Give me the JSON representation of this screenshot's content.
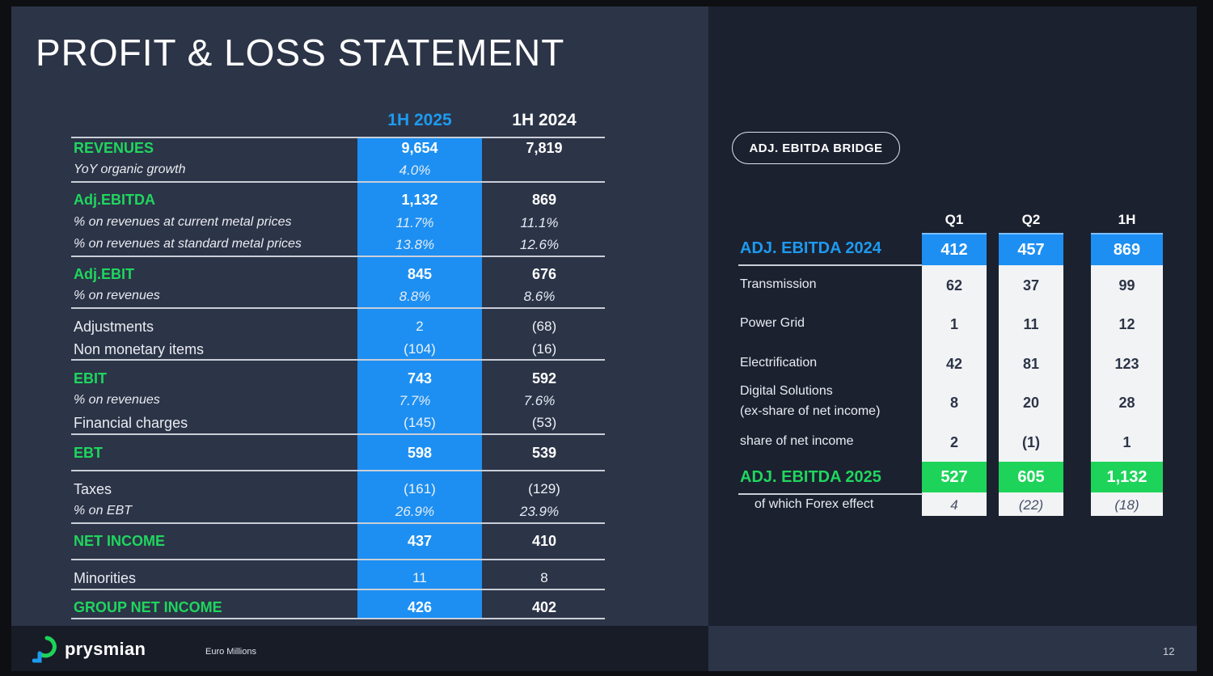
{
  "title": "PROFIT & LOSS STATEMENT",
  "pl_table": {
    "col_current": "1H 2025",
    "col_prior": "1H 2024",
    "rows": {
      "revenues": {
        "label": "REVENUES",
        "cur": "9,654",
        "prev": "7,819"
      },
      "yoy_growth": {
        "label": "YoY organic growth",
        "cur": "4.0%",
        "prev": ""
      },
      "adj_ebitda": {
        "label": "Adj.EBITDA",
        "cur": "1,132",
        "prev": "869"
      },
      "ebitda_current_metal": {
        "label": "% on revenues at current metal prices",
        "cur": "11.7%",
        "prev": "11.1%"
      },
      "ebitda_standard_metal": {
        "label": "% on revenues at standard metal prices",
        "cur": "13.8%",
        "prev": "12.6%"
      },
      "adj_ebit": {
        "label": "Adj.EBIT",
        "cur": "845",
        "prev": "676"
      },
      "adj_ebit_pct": {
        "label": "% on revenues",
        "cur": "8.8%",
        "prev": "8.6%"
      },
      "adjustments": {
        "label": "Adjustments",
        "cur": "2",
        "prev": "(68)"
      },
      "non_monetary": {
        "label": "Non monetary items",
        "cur": "(104)",
        "prev": "(16)"
      },
      "ebit": {
        "label": "EBIT",
        "cur": "743",
        "prev": "592"
      },
      "ebit_pct": {
        "label": "% on revenues",
        "cur": "7.7%",
        "prev": "7.6%"
      },
      "financial_charges": {
        "label": "Financial charges",
        "cur": "(145)",
        "prev": "(53)"
      },
      "ebt": {
        "label": "EBT",
        "cur": "598",
        "prev": "539"
      },
      "taxes": {
        "label": "Taxes",
        "cur": "(161)",
        "prev": "(129)"
      },
      "tax_pct": {
        "label": "% on EBT",
        "cur": "26.9%",
        "prev": "23.9%"
      },
      "net_income": {
        "label": "NET INCOME",
        "cur": "437",
        "prev": "410"
      },
      "minorities": {
        "label": "Minorities",
        "cur": "11",
        "prev": "8"
      },
      "group_net_income": {
        "label": "GROUP NET INCOME",
        "cur": "426",
        "prev": "402"
      }
    }
  },
  "bridge": {
    "pill": "ADJ. EBITDA BRIDGE",
    "columns": [
      "Q1",
      "Q2",
      "1H"
    ],
    "start": {
      "label": "ADJ. EBITDA 2024",
      "values": [
        "412",
        "457",
        "869"
      ]
    },
    "items": [
      {
        "label": "Transmission",
        "values": [
          "62",
          "37",
          "99"
        ]
      },
      {
        "label": "Power Grid",
        "values": [
          "1",
          "11",
          "12"
        ]
      },
      {
        "label": "Electrification",
        "values": [
          "42",
          "81",
          "123"
        ]
      },
      {
        "label": "Digital Solutions",
        "label2": "(ex-share of net income)",
        "values": [
          "8",
          "20",
          "28"
        ]
      },
      {
        "label": "share of net income",
        "values": [
          "2",
          "(1)",
          "1"
        ]
      }
    ],
    "end": {
      "label": "ADJ. EBITDA 2025",
      "values": [
        "527",
        "605",
        "1,132"
      ]
    },
    "forex": {
      "label": "of which Forex effect",
      "values": [
        "4",
        "(22)",
        "(18)"
      ]
    }
  },
  "footer": {
    "logo_text": "prysmian",
    "units": "Euro  Millions",
    "page_number": "12"
  },
  "colors": {
    "blue": "#1d8ff2",
    "green": "#1fd65e",
    "panel": "#2c3447"
  }
}
